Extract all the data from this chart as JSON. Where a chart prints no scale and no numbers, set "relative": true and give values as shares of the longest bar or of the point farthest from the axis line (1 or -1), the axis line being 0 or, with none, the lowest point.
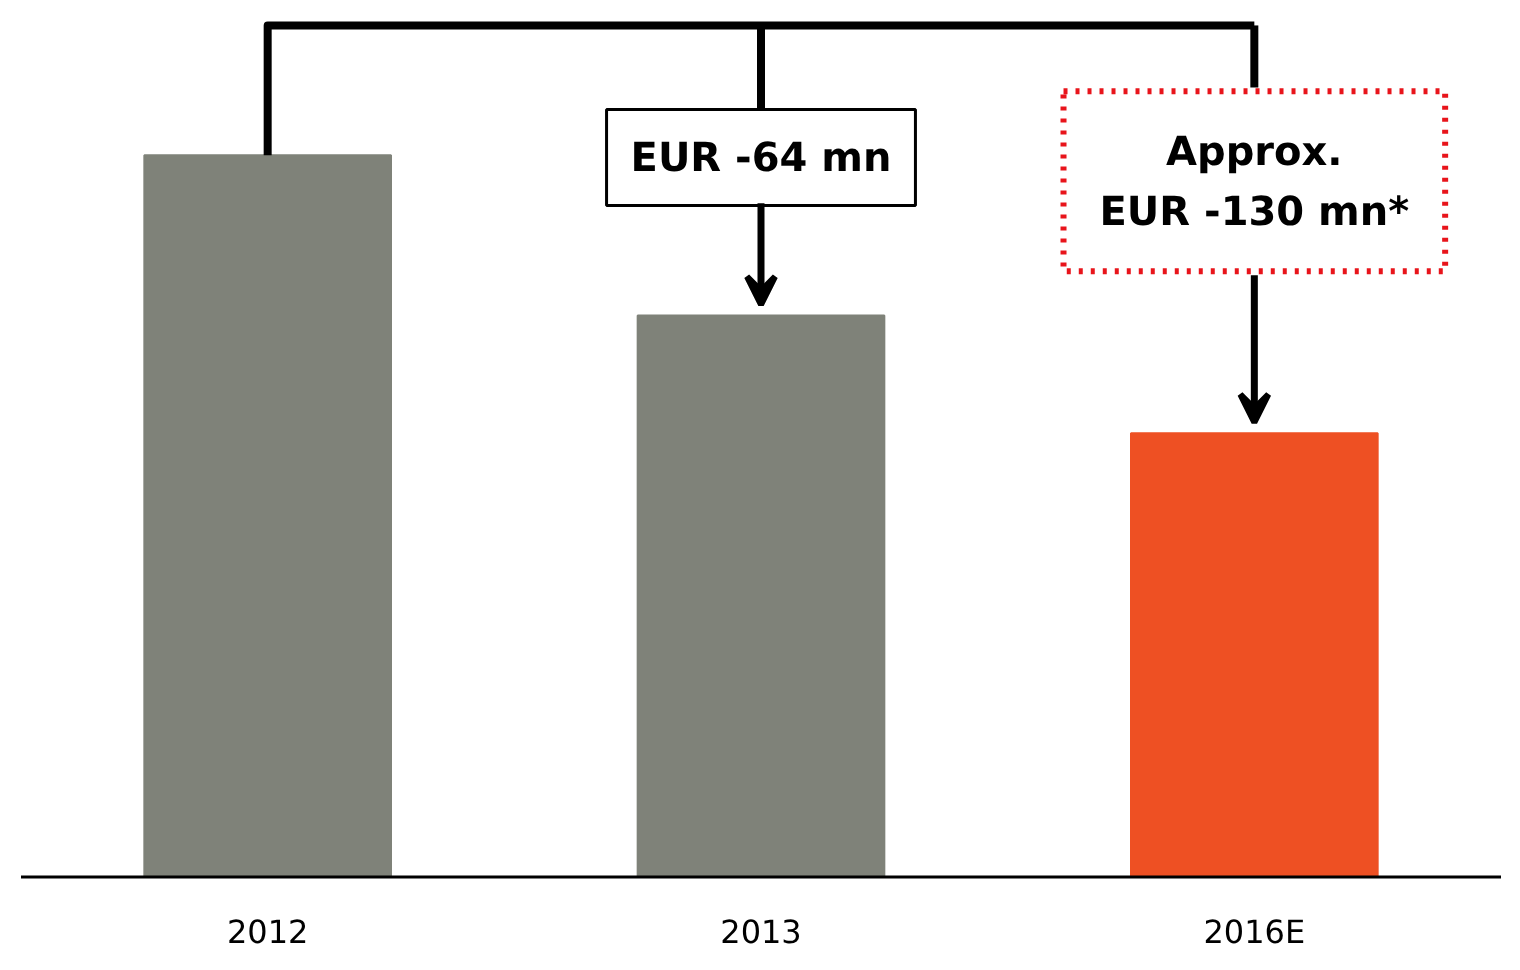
{
  "chart_data": {
    "type": "bar",
    "categories": [
      "2012",
      "2013",
      "2016E"
    ],
    "values": [
      1,
      0.778,
      0.615
    ],
    "colors": [
      "#7f8279",
      "#7f8279",
      "#ee5023"
    ],
    "relative": true,
    "annotations": [
      "EUR -64 mn",
      "Approx.\nEUR -130 mn*"
    ],
    "grid": false
  }
}
